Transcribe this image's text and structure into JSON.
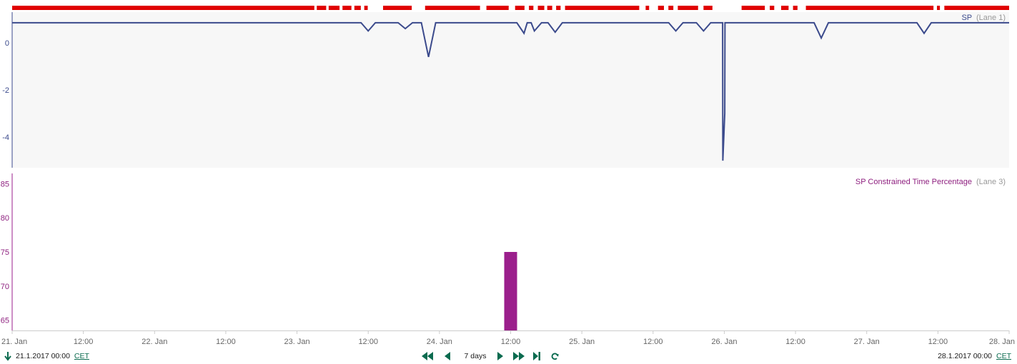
{
  "colors": {
    "status_bar": "#e00000",
    "lane1_line": "#3b4a8c",
    "lane1_bg": "#f7f7f7",
    "lane3_bar": "#9b1f8c",
    "nav": "#0b6b4f"
  },
  "chart_data": [
    {
      "type": "line",
      "lane_label": "SP",
      "lane_suffix": "(Lane 1)",
      "x_range": [
        "2017-01-21T00:00",
        "2017-01-28T00:00"
      ],
      "ylim": [
        -5.3,
        1.3
      ],
      "yticks": [
        0,
        -2,
        -4
      ],
      "baseline": 0.85,
      "dips": [
        {
          "x": "2017-01-23T12:00",
          "y": 0.5
        },
        {
          "x": "2017-01-23T18:15",
          "y": 0.6
        },
        {
          "x": "2017-01-23T22:10",
          "y": -0.6
        },
        {
          "x": "2017-01-24T14:15",
          "y": 0.4
        },
        {
          "x": "2017-01-24T16:00",
          "y": 0.5
        },
        {
          "x": "2017-01-24T19:30",
          "y": 0.45
        },
        {
          "x": "2017-01-25T15:50",
          "y": 0.5
        },
        {
          "x": "2017-01-25T20:30",
          "y": 0.5
        },
        {
          "x": "2017-01-25T23:45",
          "y": -5.0
        },
        {
          "x": "2017-01-26T00:05",
          "y": -3.0
        },
        {
          "x": "2017-01-26T16:20",
          "y": 0.2
        },
        {
          "x": "2017-01-27T09:40",
          "y": 0.4
        }
      ]
    },
    {
      "type": "bar",
      "lane_label": "SP Constrained Time Percentage",
      "lane_suffix": "(Lane 3)",
      "ylim": [
        63.5,
        86.5
      ],
      "yticks": [
        85,
        80,
        75,
        70,
        65
      ],
      "bars": [
        {
          "x": "2017-01-24T12:00",
          "value": 75
        }
      ]
    }
  ],
  "x_axis": {
    "tick_labels": [
      "21. Jan",
      "12:00",
      "22. Jan",
      "12:00",
      "23. Jan",
      "12:00",
      "24. Jan",
      "12:00",
      "25. Jan",
      "12:00",
      "26. Jan",
      "12:00",
      "27. Jan",
      "12:00",
      "28. Jan"
    ]
  },
  "status_bar": {
    "segments": [
      [
        "2017-01-21T00:00",
        "2017-01-23T02:55"
      ],
      [
        "2017-01-23T03:20",
        "2017-01-23T04:55"
      ],
      [
        "2017-01-23T05:20",
        "2017-01-23T07:10"
      ],
      [
        "2017-01-23T07:40",
        "2017-01-23T09:10"
      ],
      [
        "2017-01-23T09:40",
        "2017-01-23T10:45"
      ],
      [
        "2017-01-23T11:20",
        "2017-01-23T11:55"
      ],
      [
        "2017-01-23T14:30",
        "2017-01-23T19:20"
      ],
      [
        "2017-01-23T21:35",
        "2017-01-24T06:50"
      ],
      [
        "2017-01-24T07:55",
        "2017-01-24T11:40"
      ],
      [
        "2017-01-24T12:45",
        "2017-01-24T14:20"
      ],
      [
        "2017-01-24T15:05",
        "2017-01-24T15:50"
      ],
      [
        "2017-01-24T16:35",
        "2017-01-24T17:40"
      ],
      [
        "2017-01-24T18:10",
        "2017-01-24T19:00"
      ],
      [
        "2017-01-24T19:40",
        "2017-01-24T20:25"
      ],
      [
        "2017-01-24T21:10",
        "2017-01-25T09:40"
      ],
      [
        "2017-01-25T10:45",
        "2017-01-25T11:20"
      ],
      [
        "2017-01-25T12:50",
        "2017-01-25T13:50"
      ],
      [
        "2017-01-25T14:35",
        "2017-01-25T15:25"
      ],
      [
        "2017-01-25T16:10",
        "2017-01-25T19:35"
      ],
      [
        "2017-01-25T20:30",
        "2017-01-25T22:00"
      ],
      [
        "2017-01-26T02:55",
        "2017-01-26T06:50"
      ],
      [
        "2017-01-26T07:40",
        "2017-01-26T08:25"
      ],
      [
        "2017-01-26T09:35",
        "2017-01-26T10:50"
      ],
      [
        "2017-01-26T11:35",
        "2017-01-26T12:20"
      ],
      [
        "2017-01-26T13:45",
        "2017-01-27T11:15"
      ],
      [
        "2017-01-27T11:50",
        "2017-01-27T12:20"
      ],
      [
        "2017-01-27T13:05",
        "2017-01-28T00:00"
      ]
    ]
  },
  "footer": {
    "start_date": "21.1.2017 00:00",
    "start_tz": "CET",
    "end_date": "28.1.2017 00:00",
    "end_tz": "CET",
    "range_label": "7 days",
    "icons": {
      "start_marker": "arrow-down-icon",
      "first": "double-chevron-left-icon",
      "prev": "triangle-left-icon",
      "next": "triangle-right-icon",
      "last": "double-chevron-right-icon",
      "end": "skip-to-end-icon",
      "refresh": "refresh-icon"
    }
  }
}
